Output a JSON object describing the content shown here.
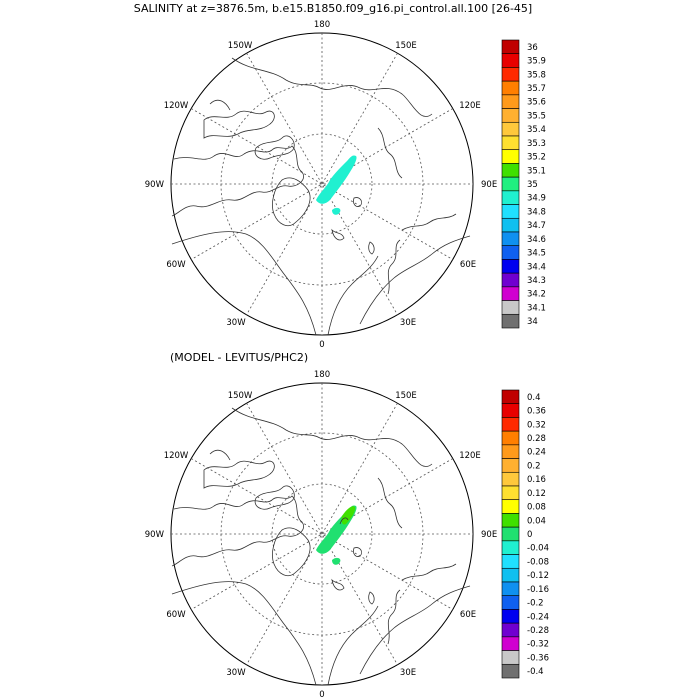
{
  "panels": [
    {
      "id": "top",
      "title": "SALINITY at z=3876.5m, b.e15.B1850.f09_g16.pi_control.all.100 [26-45]",
      "lon_labels": {
        "deg180": "180",
        "deg150w": "150W",
        "deg150e": "150E",
        "deg120w": "120W",
        "deg120e": "120E",
        "deg90w": "90W",
        "deg90e": "90E",
        "deg60w": "60W",
        "deg60e": "60E",
        "deg30w": "30W",
        "deg30e": "30E",
        "deg0": "0"
      },
      "colorbar": {
        "labels": [
          "36",
          "35.9",
          "35.8",
          "35.7",
          "35.6",
          "35.5",
          "35.4",
          "35.3",
          "35.2",
          "35.1",
          "35",
          "34.9",
          "34.8",
          "34.7",
          "34.6",
          "34.5",
          "34.4",
          "34.3",
          "34.2",
          "34.1",
          "34"
        ],
        "colors": [
          "#c00000",
          "#e80000",
          "#ff2a00",
          "#ff7f00",
          "#ff9a1a",
          "#ffb030",
          "#ffc83c",
          "#ffe030",
          "#ffff00",
          "#40e000",
          "#20f080",
          "#20f0d0",
          "#20e0ff",
          "#10c0f0",
          "#1090f0",
          "#1060f0",
          "#0000f0",
          "#7000d0",
          "#d000d0",
          "#c8c8c8",
          "#707070"
        ]
      },
      "field_color": "#20f0d0"
    },
    {
      "id": "bottom",
      "title": "(MODEL - LEVITUS/PHC2)",
      "lon_labels": {
        "deg180": "180",
        "deg150w": "150W",
        "deg150e": "150E",
        "deg120w": "120W",
        "deg120e": "120E",
        "deg90w": "90W",
        "deg90e": "90E",
        "deg60w": "60W",
        "deg60e": "60E",
        "deg30w": "30W",
        "deg30e": "30E",
        "deg0": "0"
      },
      "colorbar": {
        "labels": [
          "0.4",
          "0.36",
          "0.32",
          "0.28",
          "0.24",
          "0.2",
          "0.16",
          "0.12",
          "0.08",
          "0.04",
          "0",
          "-0.04",
          "-0.08",
          "-0.12",
          "-0.16",
          "-0.2",
          "-0.24",
          "-0.28",
          "-0.32",
          "-0.36",
          "-0.4"
        ],
        "colors": [
          "#c00000",
          "#e80000",
          "#ff2a00",
          "#ff7f00",
          "#ff9a1a",
          "#ffb030",
          "#ffc83c",
          "#ffe030",
          "#ffff00",
          "#40e000",
          "#20e070",
          "#20f0d0",
          "#20e0ff",
          "#10c0f0",
          "#1090f0",
          "#1060f0",
          "#0000f0",
          "#7000d0",
          "#d000d0",
          "#c8c8c8",
          "#707070"
        ]
      },
      "field_color": "#20e070",
      "field_color_2": "#40e000"
    }
  ]
}
